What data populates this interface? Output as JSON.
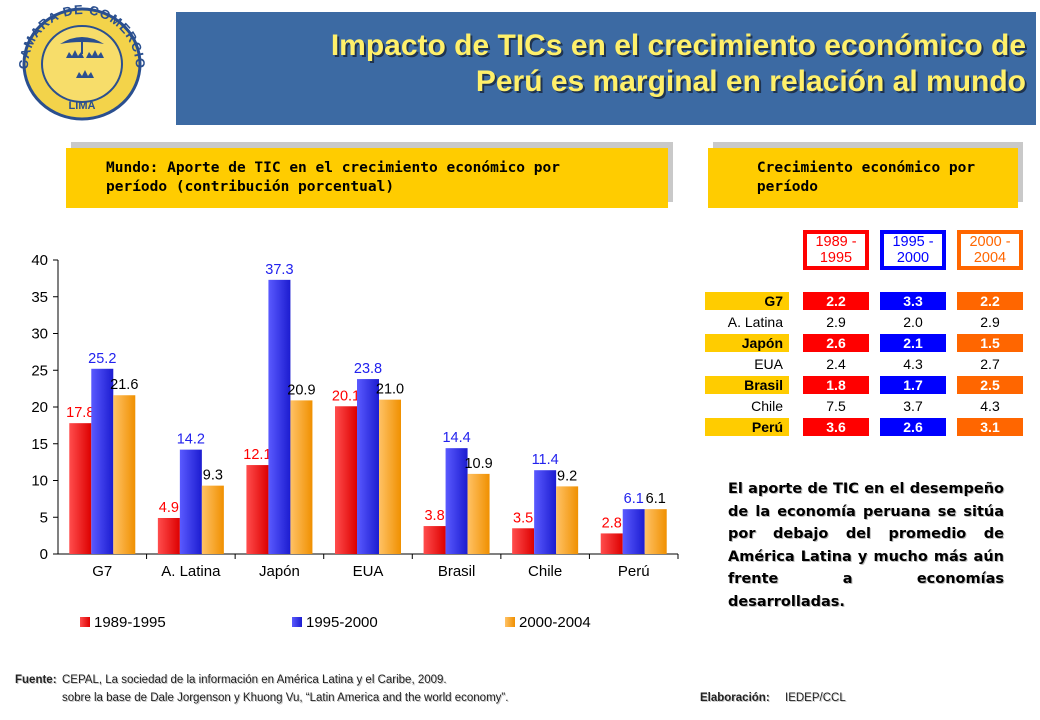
{
  "logo": {
    "text": "CAMARA DE COMERCIO",
    "city": "LIMA"
  },
  "title": "Impacto de TICs en el crecimiento económico de Perú es marginal en relación al mundo",
  "title_lines": [
    "Impacto de TICs en el crecimiento económico de",
    "Perú es marginal en relación al mundo"
  ],
  "box_left": [
    "Mundo: Aporte de TIC en el crecimiento económico por",
    "período (contribución porcentual)"
  ],
  "box_right": [
    "Crecimiento económico por",
    "período"
  ],
  "colors": {
    "red": "#ff0000",
    "blue": "#2222ee",
    "orange": "#ff9900",
    "title_banner": "#3c6aa3",
    "title_text": "#fff06a",
    "box_yellow": "#ffcc00"
  },
  "chart_data": {
    "type": "bar",
    "categories": [
      "G7",
      "A. Latina",
      "Japón",
      "EUA",
      "Brasil",
      "Chile",
      "Perú"
    ],
    "series": [
      {
        "name": "1989-1995",
        "values": [
          17.8,
          4.9,
          12.1,
          20.1,
          3.8,
          3.5,
          2.8
        ]
      },
      {
        "name": "1995-2000",
        "values": [
          25.2,
          14.2,
          37.3,
          23.8,
          14.4,
          11.4,
          6.1
        ]
      },
      {
        "name": "2000-2004",
        "values": [
          21.6,
          9.3,
          20.9,
          21.0,
          10.9,
          9.2,
          6.1
        ]
      }
    ],
    "ylim": [
      0,
      40
    ],
    "yticks": [
      0,
      5,
      10,
      15,
      20,
      25,
      30,
      35,
      40
    ],
    "legend": "bottom",
    "grid": false
  },
  "table": {
    "headers": [
      "1989 - 1995",
      "1995 - 2000",
      "2000 - 2004"
    ],
    "rows": [
      {
        "country": "G7",
        "values": [
          "2.2",
          "3.3",
          "2.2"
        ],
        "highlight": true
      },
      {
        "country": "A. Latina",
        "values": [
          "2.9",
          "2.0",
          "2.9"
        ],
        "highlight": false
      },
      {
        "country": "Japón",
        "values": [
          "2.6",
          "2.1",
          "1.5"
        ],
        "highlight": true
      },
      {
        "country": "EUA",
        "values": [
          "2.4",
          "4.3",
          "2.7"
        ],
        "highlight": false
      },
      {
        "country": "Brasil",
        "values": [
          "1.8",
          "1.7",
          "2.5"
        ],
        "highlight": true
      },
      {
        "country": "Chile",
        "values": [
          "7.5",
          "3.7",
          "4.3"
        ],
        "highlight": false
      },
      {
        "country": "Perú",
        "values": [
          "3.6",
          "2.6",
          "3.1"
        ],
        "highlight": true
      }
    ]
  },
  "note": "El aporte de TIC en el desempeño de la economía peruana se sitúa por debajo del promedio de América Latina y mucho más aún frente a economías desarrolladas.",
  "footer": {
    "source_label": "Fuente:",
    "source_line1": "CEPAL, La sociedad de la información en América Latina y el Caribe, 2009.",
    "source_line2": "sobre la base de Dale Jorgenson y Khuong Vu, “Latin America and the world economy”.",
    "credit_label": "Elaboración:",
    "credit_text": "IEDEP/CCL"
  }
}
